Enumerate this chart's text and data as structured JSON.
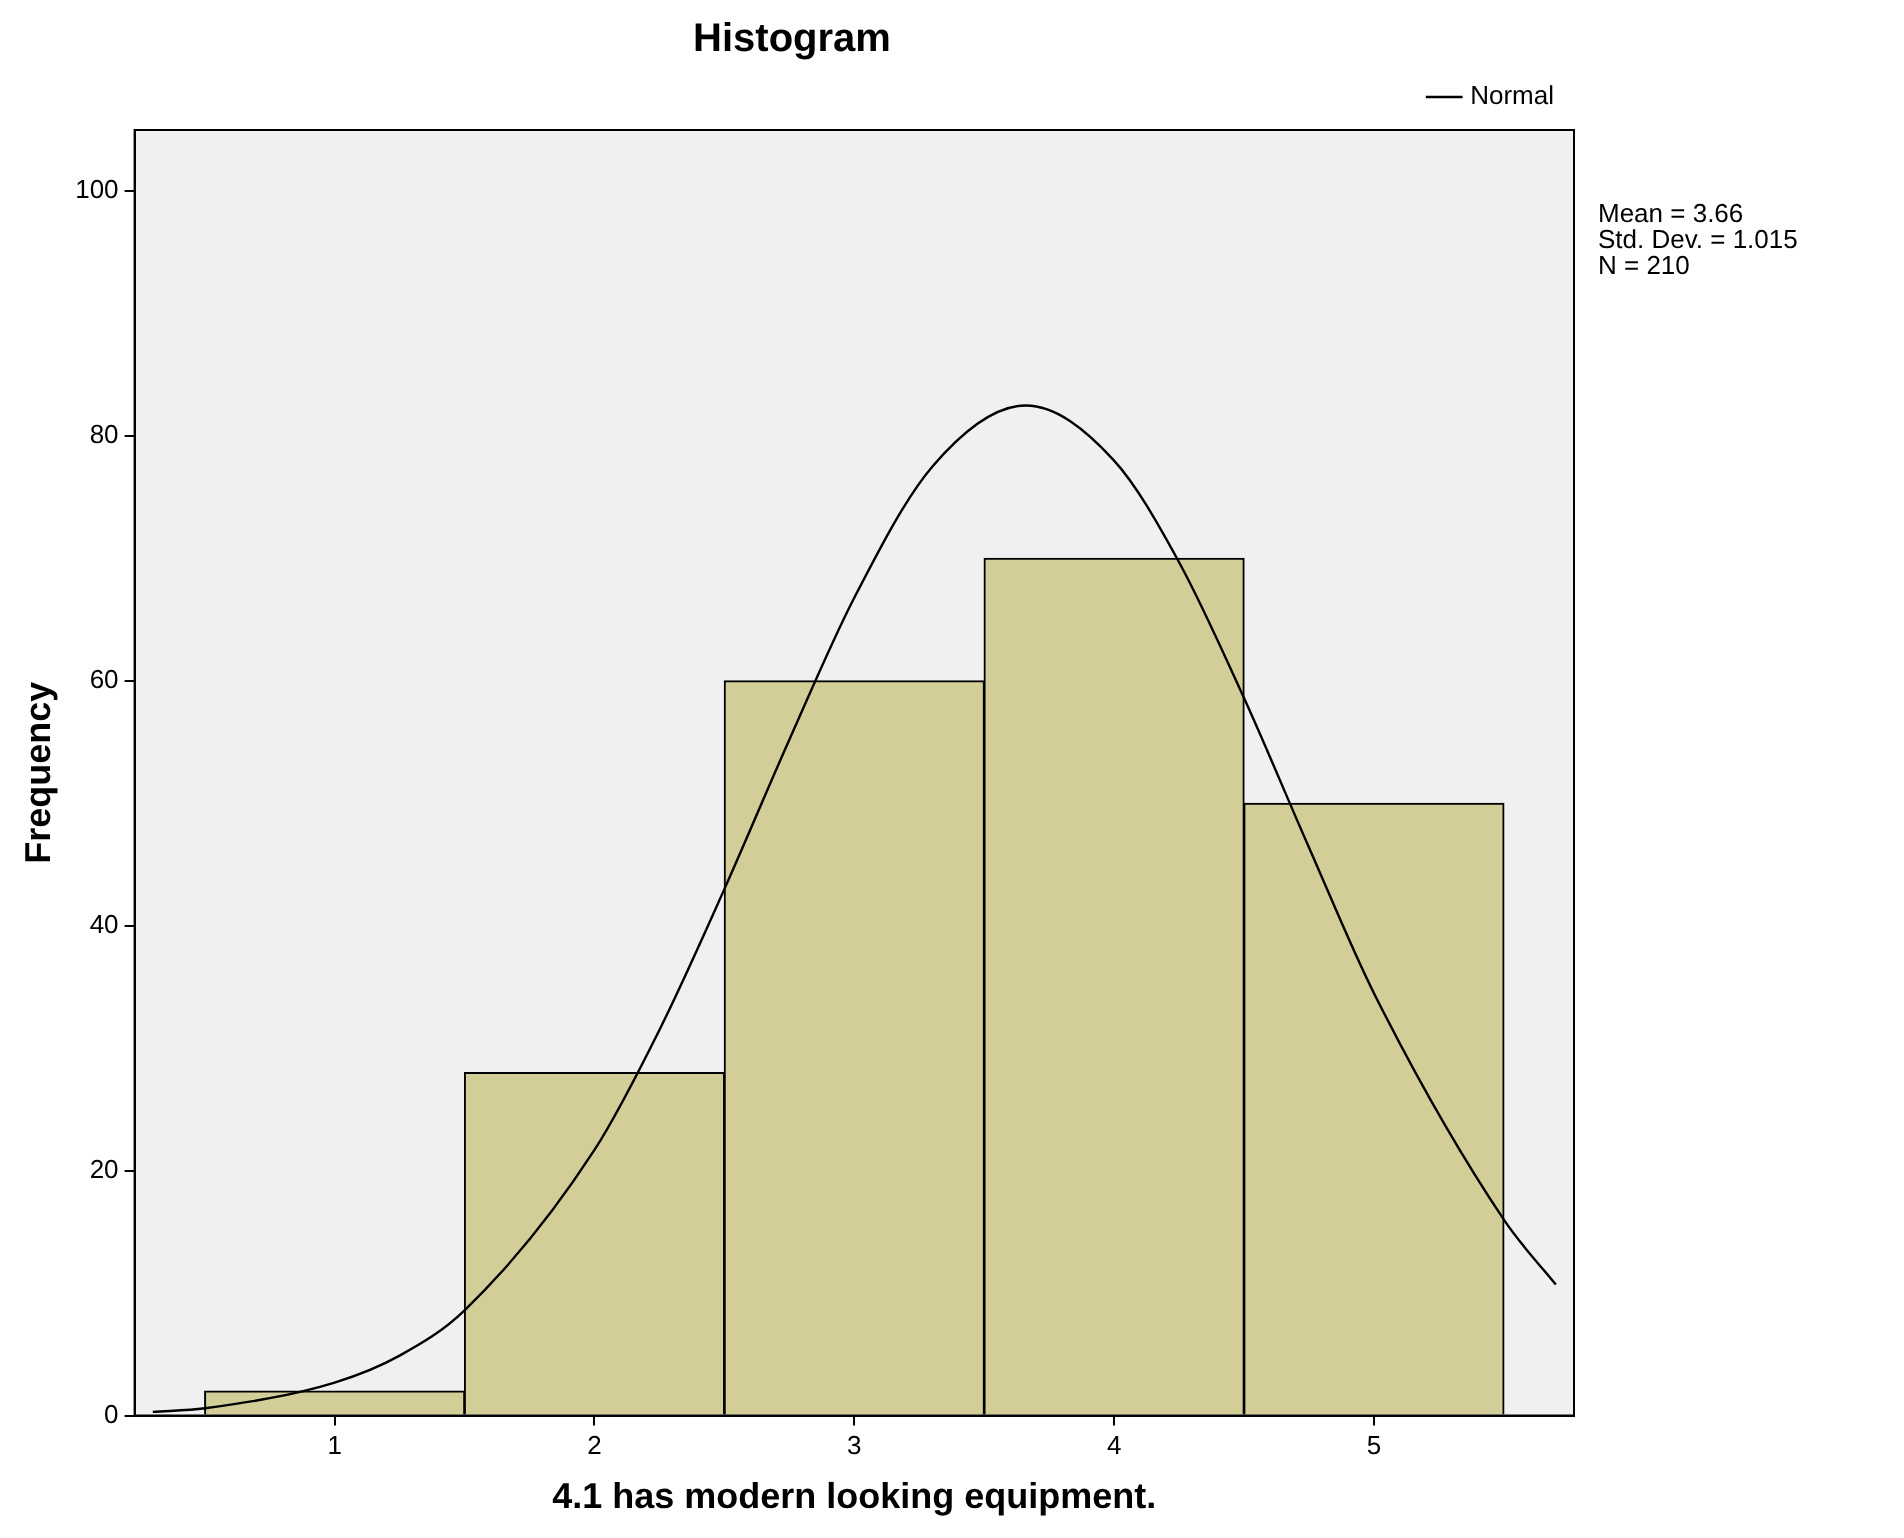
{
  "chart_data": {
    "type": "histogram",
    "title": "Histogram",
    "xlabel": "4.1 has modern looking equipment.",
    "ylabel": "Frequency",
    "bins": [
      0.5,
      1.5,
      2.5,
      3.5,
      4.5,
      5.5
    ],
    "values": [
      2,
      28,
      60,
      70,
      50
    ],
    "color": "#d3ce97",
    "series": [
      {
        "type": "line",
        "name": "Normal",
        "color": "#000000",
        "x": [
          0.3,
          0.5,
          1.0,
          1.25,
          1.5,
          2.0,
          2.25,
          2.5,
          2.75,
          3.0,
          3.3,
          3.66,
          4.0,
          4.25,
          4.5,
          4.75,
          5.0,
          5.5,
          5.7
        ],
        "values": [
          0.3,
          0.6,
          2.7,
          4.9,
          8.6,
          21.7,
          31.5,
          43,
          55.2,
          66.8,
          77.5,
          82.5,
          78,
          69.7,
          58.6,
          46.4,
          34.5,
          16,
          10.7
        ]
      }
    ],
    "xlim": [
      0.23,
      5.77
    ],
    "xticks": [
      1,
      2,
      3,
      4,
      5
    ],
    "ylim": [
      0,
      105
    ],
    "yticks": [
      0,
      20,
      40,
      60,
      80,
      100
    ],
    "grid": false,
    "legend": "top right",
    "marker": "none",
    "annotations": [
      "Mean = 3.66",
      "Std. Dev. = 1.015",
      "N = 210"
    ]
  }
}
